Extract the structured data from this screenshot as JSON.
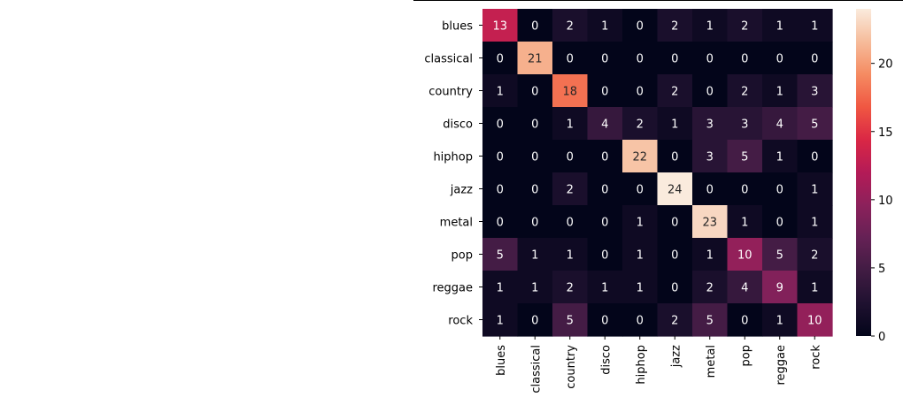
{
  "chart_data": {
    "type": "heatmap",
    "title": "",
    "xlabel": "",
    "ylabel": "",
    "x_categories": [
      "blues",
      "classical",
      "country",
      "disco",
      "hiphop",
      "jazz",
      "metal",
      "pop",
      "reggae",
      "rock"
    ],
    "y_categories": [
      "blues",
      "classical",
      "country",
      "disco",
      "hiphop",
      "jazz",
      "metal",
      "pop",
      "reggae",
      "rock"
    ],
    "values": [
      [
        13,
        0,
        2,
        1,
        0,
        2,
        1,
        2,
        1,
        1
      ],
      [
        0,
        21,
        0,
        0,
        0,
        0,
        0,
        0,
        0,
        0
      ],
      [
        1,
        0,
        18,
        0,
        0,
        2,
        0,
        2,
        1,
        3
      ],
      [
        0,
        0,
        1,
        4,
        2,
        1,
        3,
        3,
        4,
        5
      ],
      [
        0,
        0,
        0,
        0,
        22,
        0,
        3,
        5,
        1,
        0
      ],
      [
        0,
        0,
        2,
        0,
        0,
        24,
        0,
        0,
        0,
        1
      ],
      [
        0,
        0,
        0,
        0,
        1,
        0,
        23,
        1,
        0,
        1
      ],
      [
        5,
        1,
        1,
        0,
        1,
        0,
        1,
        10,
        5,
        2
      ],
      [
        1,
        1,
        2,
        1,
        1,
        0,
        2,
        4,
        9,
        1
      ],
      [
        1,
        0,
        5,
        0,
        0,
        2,
        5,
        0,
        1,
        10
      ]
    ],
    "colormap": "rocket",
    "value_range": [
      0,
      24
    ],
    "colorbar_ticks": [
      0,
      5,
      10,
      15,
      20
    ],
    "annotations": true,
    "grid": false,
    "legend": "colorbar-right"
  }
}
